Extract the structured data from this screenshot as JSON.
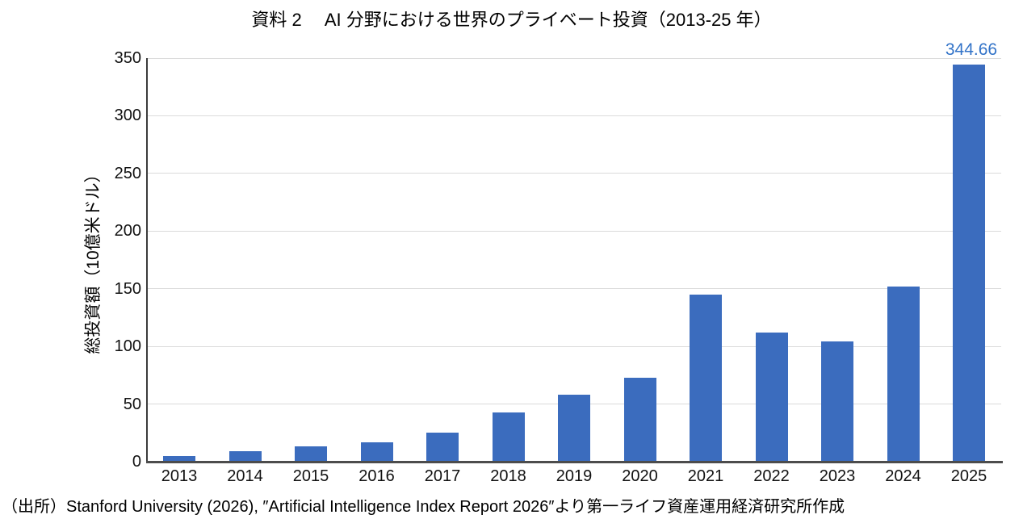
{
  "chart_data": {
    "type": "bar",
    "title": "資料 2　 AI 分野における世界のプライベート投資（2013-25 年）",
    "categories": [
      "2013",
      "2014",
      "2015",
      "2016",
      "2017",
      "2018",
      "2019",
      "2020",
      "2021",
      "2022",
      "2023",
      "2024",
      "2025"
    ],
    "values": [
      5,
      9,
      13,
      17,
      25,
      43,
      58,
      73,
      145,
      112,
      104,
      152,
      344.66
    ],
    "ylabel": "総投資額（10億米ドル）",
    "xlabel": "",
    "ylim": [
      0,
      350
    ],
    "ytick_interval": 50,
    "grid": true,
    "legend": "none",
    "bar_color": "#3b6cbe",
    "annotation": {
      "category": "2025",
      "text": "344.66",
      "color": "#3273c8"
    }
  },
  "source_note": "（出所）Stanford University (2026), ″Artificial Intelligence Index Report 2026″より第一ライフ資産運用経済研究所作成"
}
